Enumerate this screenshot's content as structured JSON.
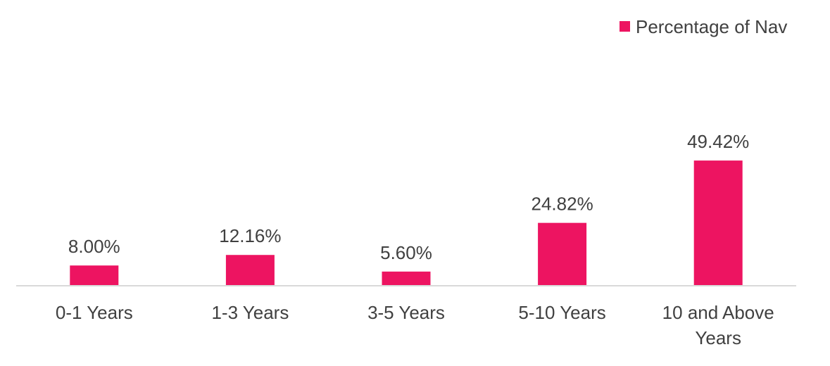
{
  "chart_data": {
    "type": "bar",
    "title": "",
    "xlabel": "",
    "ylabel": "",
    "categories": [
      [
        "0-1 Years"
      ],
      [
        "1-3 Years"
      ],
      [
        "3-5 Years"
      ],
      [
        "5-10 Years"
      ],
      [
        "10 and Above",
        "Years"
      ]
    ],
    "series": [
      {
        "name": "Percentage of Nav",
        "values": [
          8.0,
          12.16,
          5.6,
          24.82,
          49.42
        ],
        "data_labels": [
          "8.00%",
          "12.16%",
          "5.60%",
          "24.82%",
          "49.42%"
        ],
        "color": "#ED1461"
      }
    ],
    "ylim": [
      0,
      60
    ],
    "grid": false,
    "legend_position": "top-right",
    "axis_color": "#D9D9D9",
    "text_color": "#404040"
  }
}
